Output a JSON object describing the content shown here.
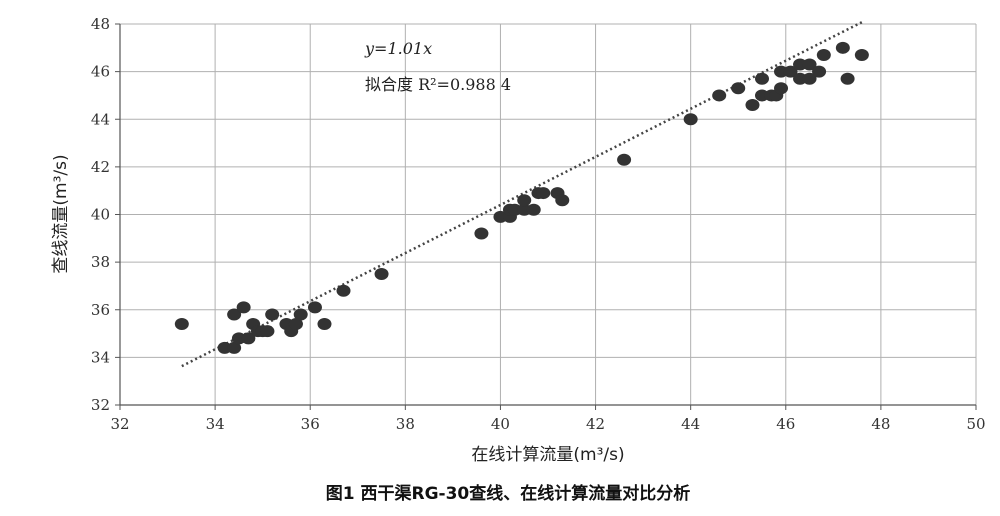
{
  "chart_data": {
    "type": "scatter",
    "caption": "图1 西干渠RG-30查线、在线计算流量对比分析",
    "xlabel": "在线计算流量(m³/s)",
    "ylabel": "查线流量(m³/s)",
    "xlim": [
      32,
      50
    ],
    "ylim": [
      32,
      48
    ],
    "xticks": [
      "32",
      "34",
      "36",
      "38",
      "40",
      "42",
      "44",
      "46",
      "48",
      "50"
    ],
    "yticks": [
      "32",
      "34",
      "36",
      "38",
      "40",
      "42",
      "44",
      "46",
      "48"
    ],
    "grid": true,
    "marker_color": "#333333",
    "trendline": {
      "style": "dotted",
      "slope": 1.01,
      "x_range": [
        33.3,
        47.6
      ]
    },
    "annotations": {
      "equation": "y=1.01x",
      "fit": "拟合度 R²=0.988 4"
    },
    "points": [
      [
        33.3,
        35.4
      ],
      [
        34.2,
        34.4
      ],
      [
        34.4,
        34.4
      ],
      [
        34.4,
        35.8
      ],
      [
        34.5,
        34.8
      ],
      [
        34.6,
        36.1
      ],
      [
        34.7,
        34.8
      ],
      [
        34.8,
        35.4
      ],
      [
        34.9,
        35.1
      ],
      [
        35.0,
        35.1
      ],
      [
        35.1,
        35.1
      ],
      [
        35.2,
        35.8
      ],
      [
        35.5,
        35.4
      ],
      [
        35.6,
        35.1
      ],
      [
        35.7,
        35.4
      ],
      [
        35.8,
        35.8
      ],
      [
        36.1,
        36.1
      ],
      [
        36.3,
        35.4
      ],
      [
        36.7,
        36.8
      ],
      [
        37.5,
        37.5
      ],
      [
        39.6,
        39.2
      ],
      [
        40.0,
        39.9
      ],
      [
        40.2,
        39.9
      ],
      [
        40.2,
        40.2
      ],
      [
        40.3,
        40.2
      ],
      [
        40.5,
        40.2
      ],
      [
        40.5,
        40.6
      ],
      [
        40.7,
        40.2
      ],
      [
        40.8,
        40.9
      ],
      [
        40.9,
        40.9
      ],
      [
        41.2,
        40.9
      ],
      [
        41.3,
        40.6
      ],
      [
        42.6,
        42.3
      ],
      [
        44.0,
        44.0
      ],
      [
        44.6,
        45.0
      ],
      [
        45.0,
        45.3
      ],
      [
        45.3,
        44.6
      ],
      [
        45.5,
        45.0
      ],
      [
        45.5,
        45.7
      ],
      [
        45.7,
        45.0
      ],
      [
        45.8,
        45.0
      ],
      [
        45.9,
        45.3
      ],
      [
        45.9,
        46.0
      ],
      [
        46.1,
        46.0
      ],
      [
        46.3,
        45.7
      ],
      [
        46.3,
        46.3
      ],
      [
        46.5,
        45.7
      ],
      [
        46.5,
        46.3
      ],
      [
        46.7,
        46.0
      ],
      [
        46.8,
        46.7
      ],
      [
        47.2,
        47.0
      ],
      [
        47.3,
        45.7
      ],
      [
        47.6,
        46.7
      ]
    ]
  }
}
